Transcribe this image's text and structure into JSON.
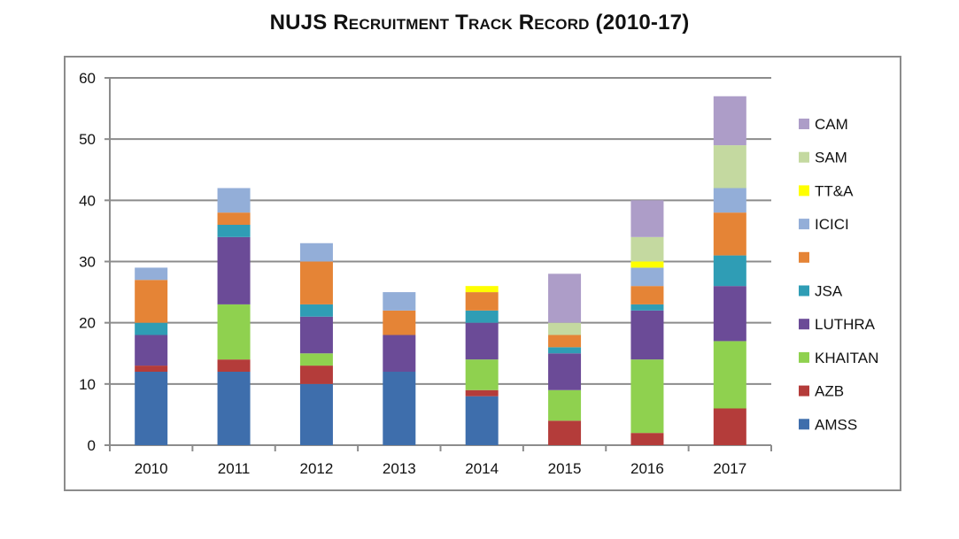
{
  "title": "NUJS Recruitment Track Record (2010-17)",
  "chart_data": {
    "type": "bar",
    "stacked": true,
    "title": "NUJS Recruitment Track Record (2010-17)",
    "categories": [
      "2010",
      "2011",
      "2012",
      "2013",
      "2014",
      "2015",
      "2016",
      "2017"
    ],
    "ylim": [
      0,
      60
    ],
    "yticks": [
      0,
      10,
      20,
      30,
      40,
      50,
      60
    ],
    "grid": true,
    "legend_position": "right",
    "series": [
      {
        "name": "AMSS",
        "color": "#3e6eac",
        "values": [
          12,
          12,
          10,
          12,
          8,
          0,
          0,
          0
        ]
      },
      {
        "name": "AZB",
        "color": "#b43c3a",
        "values": [
          1,
          2,
          3,
          0,
          1,
          4,
          2,
          6
        ]
      },
      {
        "name": "KHAITAN",
        "color": "#8fd14f",
        "values": [
          0,
          9,
          2,
          0,
          5,
          5,
          12,
          11
        ]
      },
      {
        "name": "LUTHRA",
        "color": "#6b4b97",
        "values": [
          5,
          11,
          6,
          6,
          6,
          6,
          8,
          9
        ]
      },
      {
        "name": "JSA",
        "color": "#2f9db5",
        "values": [
          2,
          2,
          2,
          0,
          2,
          1,
          1,
          5
        ]
      },
      {
        "name": "",
        "color": "#e58436",
        "values": [
          7,
          2,
          7,
          4,
          3,
          2,
          3,
          7
        ]
      },
      {
        "name": "ICICI",
        "color": "#93aed8",
        "values": [
          2,
          4,
          3,
          3,
          0,
          0,
          3,
          4
        ]
      },
      {
        "name": "TT&A",
        "color": "#ffff00",
        "values": [
          0,
          0,
          0,
          0,
          1,
          0,
          1,
          0
        ]
      },
      {
        "name": "SAM",
        "color": "#c4d9a0",
        "values": [
          0,
          0,
          0,
          0,
          0,
          2,
          4,
          7
        ]
      },
      {
        "name": "CAM",
        "color": "#ad9dc8",
        "values": [
          0,
          0,
          0,
          0,
          0,
          8,
          6,
          8
        ]
      }
    ]
  }
}
